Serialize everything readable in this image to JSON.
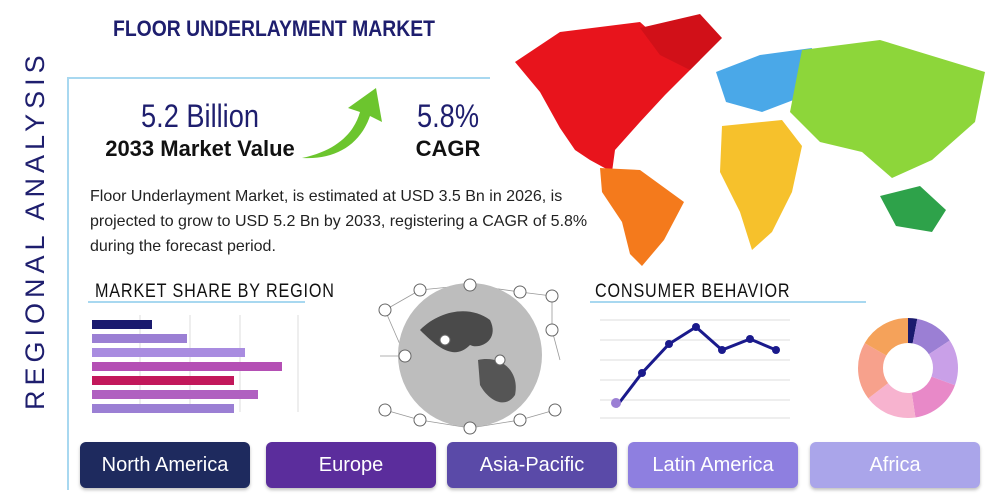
{
  "header": {
    "title": "FLOOR UNDERLAYMENT MARKET"
  },
  "side_label": "REGIONAL ANALYSIS",
  "stats": [
    {
      "value": "5.2 Billion",
      "label": "2033 Market Value"
    },
    {
      "value": "5.8%",
      "label": "CAGR"
    }
  ],
  "description": "Floor Underlayment Market, is estimated at USD 3.5 Bn in 2026, is projected to grow to USD 5.2 Bn by 2033, registering a CAGR of 5.8% during the forecast period.",
  "sections": [
    "MARKET SHARE BY REGION",
    "CONSUMER BEHAVIOR"
  ],
  "regions": [
    "North America",
    "Europe",
    "Asia-Pacific",
    "Latin America",
    "Africa"
  ]
}
